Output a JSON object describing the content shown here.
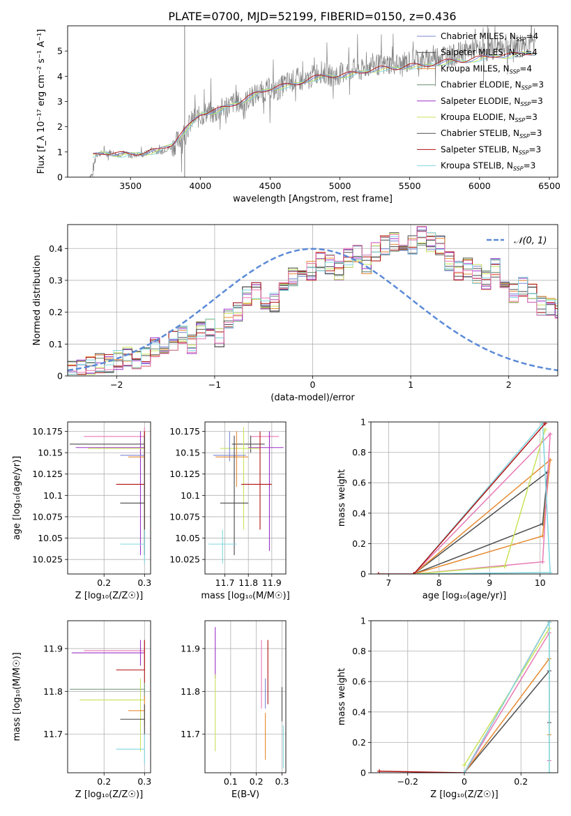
{
  "figure_title": "PLATE=0700, MJD=52199, FIBERID=0150, z=0.436",
  "colors": {
    "Chabrier MILES": "#7b85d4",
    "Salpeter MILES": "#444444",
    "Kroupa MILES": "#e68a30",
    "Chabrier ELODIE": "#6b8f71",
    "Salpeter ELODIE": "#9b30c9",
    "Kroupa ELODIE": "#c8e35a",
    "Chabrier STELIB": "#4d4d4d",
    "Salpeter STELIB": "#b01010",
    "Kroupa STELIB": "#7fd6e0",
    "pink": "#e879b4",
    "data": "#808080",
    "gaussian": "#5b8ad8"
  },
  "chart_data": [
    {
      "id": "spectrum",
      "type": "line",
      "title": "PLATE=0700, MJD=52199, FIBERID=0150, z=0.436",
      "xlabel": "wavelength [Angstrom, rest frame]",
      "ylabel": "Flux [f_λ 10⁻¹⁷ erg cm⁻² s⁻¹ A⁻¹]",
      "xlim": [
        3050,
        6560
      ],
      "ylim": [
        0,
        6
      ],
      "xticks": [
        3500,
        4000,
        4500,
        5000,
        5500,
        6000,
        6500
      ],
      "yticks": [
        0,
        1,
        2,
        3,
        4,
        5
      ],
      "legend_position": "upper right",
      "legend": [
        "Chabrier MILES, N_SSP=4",
        "Salpeter MILES, N_SSP=4",
        "Kroupa MILES, N_SSP=4",
        "Chabrier ELODIE, N_SSP=3",
        "Salpeter ELODIE, N_SSP=3",
        "Kroupa ELODIE, N_SSP=3",
        "Chabrier STELIB, N_SSP=3",
        "Salpeter STELIB, N_SSP=3",
        "Kroupa STELIB, N_SSP=3"
      ],
      "series": [
        {
          "name": "data",
          "x": [
            3200,
            3230,
            3250,
            3300,
            3350,
            3400,
            3450,
            3500,
            3550,
            3600,
            3650,
            3700,
            3750,
            3800,
            3850,
            3900,
            3950,
            4000,
            4050,
            4100,
            4150,
            4200,
            4250,
            4300,
            4350,
            4400,
            4450,
            4500,
            4550,
            4600,
            4650,
            4700,
            4750,
            4800,
            4850,
            4900,
            4950,
            5000,
            5050,
            5100,
            5150,
            5200,
            5250,
            5300,
            5350,
            5400,
            5450,
            5500,
            5550,
            5600,
            5650,
            5700,
            5750,
            5800,
            5850,
            5900,
            5950,
            6000,
            6050,
            6100,
            6150,
            6200,
            6250,
            6300,
            6350,
            6400
          ],
          "y": [
            0,
            0.1,
            0.9,
            0.95,
            1.0,
            0.9,
            0.95,
            0.85,
            0.9,
            0.9,
            1.1,
            1.0,
            1.1,
            1.2,
            1.5,
            1.9,
            2.3,
            2.4,
            2.6,
            2.5,
            2.7,
            2.8,
            3.0,
            2.9,
            3.1,
            3.3,
            3.4,
            3.5,
            3.4,
            3.7,
            3.8,
            3.9,
            3.7,
            4.0,
            4.2,
            4.1,
            4.0,
            4.1,
            4.2,
            4.3,
            4.2,
            4.4,
            4.5,
            4.4,
            4.5,
            4.5,
            4.4,
            4.6,
            4.7,
            4.6,
            4.7,
            4.8,
            4.9,
            4.8,
            4.9,
            5.0,
            5.1,
            5.0,
            5.0,
            5.1,
            5.2,
            5.2,
            5.2,
            5.3,
            5.3,
            5.3
          ]
        },
        {
          "name": "model",
          "x": [
            3230,
            3300,
            3400,
            3500,
            3600,
            3700,
            3800,
            3850,
            3900,
            3950,
            4000,
            4100,
            4200,
            4300,
            4400,
            4500,
            4600,
            4700,
            4800,
            4900,
            5000,
            5100,
            5200,
            5300,
            5400,
            5500,
            5600,
            5700,
            5800,
            5900,
            6000,
            6100,
            6200,
            6300,
            6400
          ],
          "y": [
            0.85,
            0.95,
            0.9,
            0.9,
            0.95,
            1.05,
            1.3,
            1.6,
            1.9,
            2.2,
            2.5,
            2.6,
            2.8,
            3.0,
            3.3,
            3.5,
            3.6,
            3.7,
            3.9,
            4.0,
            4.0,
            4.1,
            4.2,
            4.3,
            4.3,
            4.4,
            4.4,
            4.5,
            4.6,
            4.6,
            4.7,
            4.8,
            4.8,
            4.9,
            4.9
          ]
        }
      ]
    },
    {
      "id": "residuals",
      "type": "bar",
      "xlabel": "(data-model)/error",
      "ylabel": "Normed distribution",
      "xlim": [
        -2.5,
        2.5
      ],
      "ylim": [
        0,
        0.475
      ],
      "xticks": [
        -2,
        -1,
        0,
        1,
        2
      ],
      "yticks": [
        0.0,
        0.1,
        0.2,
        0.3,
        0.4
      ],
      "legend_position": "upper right",
      "legend": [
        "𝒩(0, 1)"
      ],
      "bin_width": 0.1,
      "x_start": -2.5,
      "hist_values": [
        0.02,
        0.02,
        0.03,
        0.04,
        0.04,
        0.05,
        0.06,
        0.05,
        0.06,
        0.09,
        0.1,
        0.11,
        0.13,
        0.1,
        0.14,
        0.15,
        0.12,
        0.18,
        0.2,
        0.25,
        0.27,
        0.24,
        0.23,
        0.28,
        0.31,
        0.3,
        0.33,
        0.36,
        0.35,
        0.33,
        0.37,
        0.38,
        0.35,
        0.39,
        0.41,
        0.42,
        0.39,
        0.41,
        0.44,
        0.42,
        0.41,
        0.36,
        0.33,
        0.34,
        0.32,
        0.3,
        0.34,
        0.3,
        0.26,
        0.28,
        0.26,
        0.22,
        0.22,
        0.21,
        0.19,
        0.17,
        0.15,
        0.12,
        0.1,
        0.09,
        0.08,
        0.07,
        0.06,
        0.07,
        0.06,
        0.07,
        0.05,
        0.06,
        0.04,
        0.05,
        0.04,
        0.04,
        0.03
      ]
    },
    {
      "id": "age-vs-Z",
      "type": "scatter",
      "xlabel": "Z [log₁₀(Z/Z☉)]",
      "ylabel": "age  [log₁₀(age/yr)]",
      "xlim": [
        0.11,
        0.315
      ],
      "ylim": [
        10.008,
        10.186
      ],
      "xticks": [
        0.2,
        0.3
      ],
      "yticks": [
        10.025,
        10.05,
        10.075,
        10.1,
        10.125,
        10.15,
        10.175
      ],
      "points": [
        {
          "x": 0.3,
          "y": 10.169,
          "xerr": [
            0.15,
            0.3
          ],
          "yerr": [
            10.14,
            10.18
          ],
          "series": "pink"
        },
        {
          "x": 0.3,
          "y": 10.16,
          "xerr": [
            0.115,
            0.3
          ],
          "yerr": [
            10.15,
            10.17
          ],
          "series": "Chabrier STELIB"
        },
        {
          "x": 0.29,
          "y": 10.156,
          "xerr": [
            0.13,
            0.3
          ],
          "yerr": [
            10.03,
            10.175
          ],
          "series": "Salpeter ELODIE"
        },
        {
          "x": 0.3,
          "y": 10.155,
          "xerr": [
            0.16,
            0.3
          ],
          "yerr": [
            10.14,
            10.175
          ],
          "series": "Kroupa ELODIE"
        },
        {
          "x": 0.3,
          "y": 10.147,
          "xerr": [
            0.24,
            0.3
          ],
          "yerr": [
            10.13,
            10.175
          ],
          "series": "Chabrier MILES"
        },
        {
          "x": 0.3,
          "y": 10.145,
          "xerr": [
            0.26,
            0.3
          ],
          "yerr": [
            10.13,
            10.175
          ],
          "series": "Kroupa MILES"
        },
        {
          "x": 0.3,
          "y": 10.113,
          "xerr": [
            0.23,
            0.3
          ],
          "yerr": [
            10.03,
            10.175
          ],
          "series": "Salpeter STELIB"
        },
        {
          "x": 0.3,
          "y": 10.091,
          "xerr": [
            0.24,
            0.3
          ],
          "yerr": [
            10.03,
            10.17
          ],
          "series": "Salpeter MILES"
        },
        {
          "x": 0.3,
          "y": 10.043,
          "xerr": [
            0.24,
            0.3
          ],
          "yerr": [
            10.02,
            10.06
          ],
          "series": "Kroupa STELIB"
        }
      ]
    },
    {
      "id": "age-vs-mass",
      "type": "scatter",
      "xlabel": "mass [log₁₀(M/M☉)]",
      "ylabel": "",
      "xlim": [
        11.615,
        11.96
      ],
      "ylim": [
        10.008,
        10.186
      ],
      "xticks": [
        11.7,
        11.8,
        11.9
      ],
      "yticks": [
        10.025,
        10.05,
        10.075,
        10.1,
        10.125,
        10.15,
        10.175
      ],
      "points": [
        {
          "x": 11.89,
          "y": 10.169,
          "xerr": [
            11.81,
            11.93
          ],
          "yerr": [
            10.16,
            10.175
          ],
          "series": "pink"
        },
        {
          "x": 11.81,
          "y": 10.16,
          "xerr": [
            11.73,
            11.87
          ],
          "yerr": [
            10.15,
            10.17
          ],
          "series": "Chabrier STELIB"
        },
        {
          "x": 11.89,
          "y": 10.156,
          "xerr": [
            11.8,
            11.95
          ],
          "yerr": [
            10.035,
            10.175
          ],
          "series": "Salpeter ELODIE"
        },
        {
          "x": 11.78,
          "y": 10.155,
          "xerr": [
            11.68,
            11.85
          ],
          "yerr": [
            10.06,
            10.18
          ],
          "series": "Kroupa ELODIE"
        },
        {
          "x": 11.72,
          "y": 10.147,
          "xerr": [
            11.65,
            11.79
          ],
          "yerr": [
            10.14,
            10.175
          ],
          "series": "Chabrier MILES"
        },
        {
          "x": 11.75,
          "y": 10.145,
          "xerr": [
            11.66,
            11.8
          ],
          "yerr": [
            10.11,
            10.175
          ],
          "series": "Kroupa MILES"
        },
        {
          "x": 11.85,
          "y": 10.113,
          "xerr": [
            11.77,
            11.9
          ],
          "yerr": [
            10.06,
            10.175
          ],
          "series": "Salpeter STELIB"
        },
        {
          "x": 11.74,
          "y": 10.091,
          "xerr": [
            11.68,
            11.8
          ],
          "yerr": [
            10.03,
            10.17
          ],
          "series": "Salpeter MILES"
        },
        {
          "x": 11.69,
          "y": 10.043,
          "xerr": [
            11.63,
            11.75
          ],
          "yerr": [
            10.02,
            10.06
          ],
          "series": "Kroupa STELIB"
        }
      ]
    },
    {
      "id": "mass-weight-vs-age",
      "type": "line",
      "xlabel": "age  [log₁₀(age/yr)]",
      "ylabel": "mass weight",
      "xlim": [
        6.65,
        10.35
      ],
      "ylim": [
        0,
        1.0
      ],
      "xticks": [
        7,
        8,
        9,
        10
      ],
      "yticks": [
        0.0,
        0.2,
        0.4,
        0.6,
        0.8,
        1.0
      ],
      "series": [
        {
          "name": "Chabrier STELIB",
          "x": [
            7.5,
            10.05,
            10.15,
            7.5
          ],
          "y": [
            0.0,
            0.33,
            0.67,
            0.0
          ]
        },
        {
          "name": "Kroupa MILES",
          "x": [
            7.5,
            10.05,
            10.2,
            7.5
          ],
          "y": [
            0.0,
            0.25,
            0.75,
            0.0
          ]
        },
        {
          "name": "pink",
          "x": [
            7.5,
            10.05,
            10.2,
            7.5
          ],
          "y": [
            0.0,
            0.08,
            0.92,
            0.0
          ]
        },
        {
          "name": "Kroupa ELODIE",
          "x": [
            7.5,
            9.3,
            10.1,
            9.3
          ],
          "y": [
            0.0,
            0.05,
            0.95,
            0.05
          ]
        },
        {
          "name": "Kroupa STELIB",
          "x": [
            7.5,
            10.05,
            10.2,
            7.5
          ],
          "y": [
            0.0,
            0.99,
            0.01,
            0.0
          ]
        },
        {
          "name": "Salpeter STELIB",
          "x": [
            6.8,
            7.5,
            10.1
          ],
          "y": [
            0.0,
            0.0,
            0.99
          ]
        }
      ]
    },
    {
      "id": "mass-vs-Z",
      "type": "scatter",
      "xlabel": "Z [log₁₀(Z/Z☉)]",
      "ylabel": "mass [log₁₀(M/M☉)]",
      "xlim": [
        0.11,
        0.315
      ],
      "ylim": [
        11.61,
        11.965
      ],
      "xticks": [
        0.2,
        0.3
      ],
      "yticks": [
        11.7,
        11.8,
        11.9
      ],
      "points": [
        {
          "x": 0.3,
          "y": 11.895,
          "xerr": [
            0.15,
            0.3
          ],
          "yerr": [
            11.85,
            11.92
          ],
          "series": "pink"
        },
        {
          "x": 0.29,
          "y": 11.89,
          "xerr": [
            0.12,
            0.3
          ],
          "yerr": [
            11.86,
            11.92
          ],
          "series": "Salpeter ELODIE"
        },
        {
          "x": 0.3,
          "y": 11.85,
          "xerr": [
            0.23,
            0.3
          ],
          "yerr": [
            11.82,
            11.92
          ],
          "series": "Salpeter STELIB"
        },
        {
          "x": 0.3,
          "y": 11.805,
          "xerr": [
            0.115,
            0.3
          ],
          "yerr": [
            11.78,
            11.82
          ],
          "series": "Chabrier ELODIE"
        },
        {
          "x": 0.29,
          "y": 11.78,
          "xerr": [
            0.14,
            0.3
          ],
          "yerr": [
            11.66,
            11.83
          ],
          "series": "Kroupa ELODIE"
        },
        {
          "x": 0.3,
          "y": 11.755,
          "xerr": [
            0.26,
            0.3
          ],
          "yerr": [
            11.72,
            11.79
          ],
          "series": "Kroupa MILES"
        },
        {
          "x": 0.3,
          "y": 11.735,
          "xerr": [
            0.24,
            0.3
          ],
          "yerr": [
            11.7,
            11.77
          ],
          "series": "Salpeter MILES"
        },
        {
          "x": 0.3,
          "y": 11.665,
          "xerr": [
            0.23,
            0.3
          ],
          "yerr": [
            11.63,
            11.7
          ],
          "series": "Kroupa STELIB"
        }
      ]
    },
    {
      "id": "mass-vs-EBV",
      "type": "scatter",
      "xlabel": "E(B-V)",
      "ylabel": "",
      "xlim": [
        0.0,
        0.315
      ],
      "ylim": [
        11.61,
        11.965
      ],
      "xticks": [
        0.1,
        0.2,
        0.3
      ],
      "yticks": [
        11.7,
        11.8,
        11.9
      ],
      "points": [
        {
          "x": 0.04,
          "y": 11.895,
          "yerr": [
            11.83,
            11.95
          ],
          "series": "Salpeter ELODIE"
        },
        {
          "x": 0.04,
          "y": 11.755,
          "yerr": [
            11.66,
            11.84
          ],
          "series": "Kroupa ELODIE"
        },
        {
          "x": 0.22,
          "y": 11.85,
          "yerr": [
            11.76,
            11.92
          ],
          "series": "pink"
        },
        {
          "x": 0.235,
          "y": 11.79,
          "yerr": [
            11.76,
            11.83
          ],
          "series": "Chabrier MILES"
        },
        {
          "x": 0.235,
          "y": 11.68,
          "yerr": [
            11.64,
            11.75
          ],
          "series": "Kroupa MILES"
        },
        {
          "x": 0.245,
          "y": 11.855,
          "yerr": [
            11.77,
            11.92
          ],
          "series": "Salpeter STELIB"
        },
        {
          "x": 0.3,
          "y": 11.79,
          "yerr": [
            11.73,
            11.81
          ],
          "series": "Chabrier STELIB"
        },
        {
          "x": 0.305,
          "y": 11.67,
          "yerr": [
            11.62,
            11.72
          ],
          "series": "Kroupa STELIB"
        }
      ]
    },
    {
      "id": "mass-weight-vs-Z",
      "type": "line",
      "xlabel": "Z [log₁₀(Z/Z☉)]",
      "ylabel": "mass weight",
      "xlim": [
        -0.33,
        0.33
      ],
      "ylim": [
        0,
        1.0
      ],
      "xticks": [
        -0.2,
        0.0,
        0.2
      ],
      "yticks": [
        0.0,
        0.2,
        0.4,
        0.6,
        0.8,
        1.0
      ],
      "series": [
        {
          "name": "Salpeter STELIB",
          "x": [
            -0.3,
            0.0,
            0.3
          ],
          "y": [
            0.01,
            0.0,
            0.99
          ]
        },
        {
          "name": "Chabrier STELIB",
          "x": [
            0.0,
            0.3,
            0.3
          ],
          "y": [
            0.0,
            0.67,
            0.33
          ]
        },
        {
          "name": "Kroupa MILES",
          "x": [
            0.0,
            0.3,
            0.3
          ],
          "y": [
            0.0,
            0.75,
            0.25
          ]
        },
        {
          "name": "pink",
          "x": [
            0.0,
            0.3,
            0.3
          ],
          "y": [
            0.0,
            0.92,
            0.08
          ]
        },
        {
          "name": "Kroupa ELODIE",
          "x": [
            0.0,
            0.3,
            0.3
          ],
          "y": [
            0.05,
            0.95,
            0.0
          ]
        },
        {
          "name": "Kroupa STELIB",
          "x": [
            0.0,
            0.3,
            0.3
          ],
          "y": [
            0.0,
            0.99,
            0.0
          ]
        }
      ]
    }
  ]
}
